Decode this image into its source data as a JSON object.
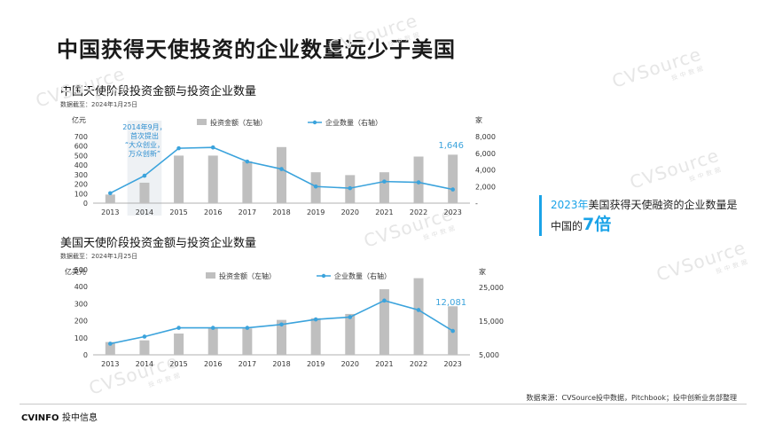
{
  "page": {
    "title": "中国获得天使投资的企业数量远少于美国",
    "source": "数据来源：CVSource投中数据，Pitchbook；投中创新业务部整理",
    "logo_brand": "CVINFO",
    "logo_suffix": "投中信息",
    "watermark_text": "CVSource",
    "watermark_sub": "投中数据"
  },
  "callout": {
    "year": "2023年",
    "text": "美国获得天使融资的企业数量是",
    "text2": "中国的",
    "multiple": "7倍"
  },
  "colors": {
    "bar": "#bfbfbf",
    "line": "#3ba3dc",
    "accent": "#1aa3e8"
  },
  "chart_data": [
    {
      "type": "bar+line",
      "title": "中国天使阶段投资金额与投资企业数量",
      "date_note": "数据截至：2024年1月25日",
      "categories": [
        "2013",
        "2014",
        "2015",
        "2016",
        "2017",
        "2018",
        "2019",
        "2020",
        "2021",
        "2022",
        "2023"
      ],
      "left_unit": "亿元",
      "right_unit": "家",
      "left_ylim": [
        0,
        700
      ],
      "left_ticks": [
        "0",
        "100",
        "200",
        "300",
        "400",
        "500",
        "600",
        "700"
      ],
      "right_ylim": [
        0,
        8000
      ],
      "right_ticks": [
        "-",
        "2,000",
        "4,000",
        "6,000",
        "8,000"
      ],
      "series": [
        {
          "name": "投资金额（左轴）",
          "kind": "bar",
          "values": [
            90,
            215,
            500,
            500,
            440,
            590,
            325,
            295,
            325,
            490,
            510
          ]
        },
        {
          "name": "企业数量（右轴）",
          "kind": "line",
          "values": [
            1200,
            3300,
            6600,
            6700,
            5000,
            4100,
            2000,
            1800,
            2600,
            2500,
            1646
          ]
        }
      ],
      "point_label": {
        "index": 10,
        "text": "1,646"
      },
      "highlight": {
        "index": 1,
        "text": [
          "2014年9月，",
          "首次提出",
          "“大众创业，",
          "万众创新”"
        ]
      }
    },
    {
      "type": "bar+line",
      "title": "美国天使阶段投资金额与投资企业数量",
      "date_note": "数据截至：2024年1月25日",
      "categories": [
        "2013",
        "2014",
        "2015",
        "2016",
        "2017",
        "2018",
        "2019",
        "2020",
        "2021",
        "2022",
        "2023"
      ],
      "left_unit": "亿美元",
      "right_unit": "家",
      "left_ylim": [
        0,
        500
      ],
      "left_ticks": [
        "0",
        "100",
        "200",
        "300",
        "400",
        "500"
      ],
      "right_ylim": [
        5000,
        25000
      ],
      "right_ticks": [
        "5,000",
        "15,000",
        "25,000"
      ],
      "series": [
        {
          "name": "投资金额（左轴）",
          "kind": "bar",
          "values": [
            75,
            85,
            125,
            160,
            155,
            205,
            215,
            240,
            385,
            450,
            285
          ]
        },
        {
          "name": "企业数量（右轴）",
          "kind": "line",
          "values": [
            8300,
            10400,
            13000,
            13000,
            13000,
            14000,
            15500,
            16200,
            21100,
            18300,
            12081
          ]
        }
      ],
      "point_label": {
        "index": 10,
        "text": "12,081"
      }
    }
  ]
}
